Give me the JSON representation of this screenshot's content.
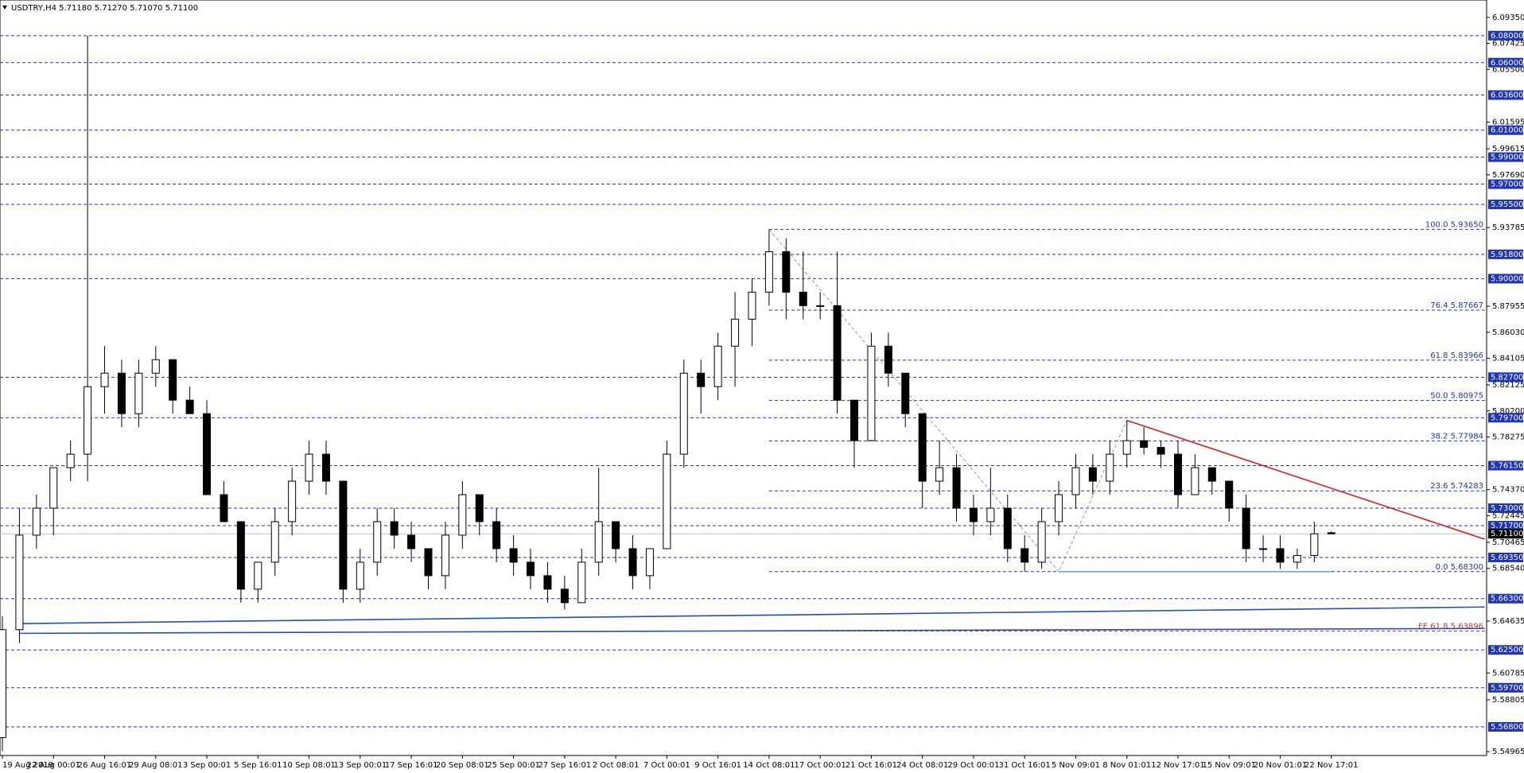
{
  "chart_data": {
    "type": "candlestick",
    "title": "USDTRY,H4  5.71180 5.71270 5.71070 5.71100",
    "categories": [
      "19 Aug 2019",
      "22 Aug 00:01",
      "26 Aug 16:01",
      "29 Aug 08:01",
      "3 Sep 00:01",
      "5 Sep 16:01",
      "10 Sep 08:01",
      "13 Sep 00:01",
      "17 Sep 16:01",
      "20 Sep 08:01",
      "25 Sep 00:01",
      "27 Sep 16:01",
      "2 Oct 08:01",
      "7 Oct 00:01",
      "9 Oct 16:01",
      "14 Oct 08:01",
      "17 Oct 00:01",
      "21 Oct 16:01",
      "24 Oct 08:01",
      "29 Oct 00:01",
      "31 Oct 16:01",
      "5 Nov 09:01",
      "8 Nov 01:01",
      "12 Nov 17:01",
      "15 Nov 09:01",
      "20 Nov 01:01",
      "22 Nov 17:01"
    ],
    "candles": {
      "open": [
        5.56,
        5.64,
        5.71,
        5.73,
        5.76,
        5.77,
        5.82,
        5.83,
        5.8,
        5.83,
        5.84,
        5.81,
        5.8,
        5.74,
        5.72,
        5.67,
        5.69,
        5.72,
        5.75,
        5.77,
        5.75,
        5.67,
        5.69,
        5.72,
        5.71,
        5.7,
        5.68,
        5.71,
        5.74,
        5.72,
        5.7,
        5.69,
        5.68,
        5.67,
        5.66,
        5.69,
        5.72,
        5.7,
        5.68,
        5.7,
        5.77,
        5.83,
        5.82,
        5.85,
        5.87,
        5.89,
        5.92,
        5.89,
        5.88,
        5.88,
        5.81,
        5.78,
        5.85,
        5.83,
        5.8,
        5.75,
        5.76,
        5.73,
        5.72,
        5.73,
        5.7,
        5.69,
        5.72,
        5.74,
        5.76,
        5.75,
        5.77,
        5.78,
        5.775,
        5.77,
        5.74,
        5.76,
        5.75,
        5.73,
        5.7,
        5.7,
        5.69,
        5.695,
        5.7118
      ],
      "high": [
        5.65,
        5.73,
        5.74,
        5.76,
        5.78,
        6.08,
        5.85,
        5.84,
        5.84,
        5.85,
        5.84,
        5.82,
        5.81,
        5.75,
        5.72,
        5.69,
        5.73,
        5.76,
        5.78,
        5.78,
        5.75,
        5.7,
        5.73,
        5.73,
        5.72,
        5.7,
        5.72,
        5.75,
        5.74,
        5.73,
        5.71,
        5.7,
        5.69,
        5.68,
        5.7,
        5.76,
        5.72,
        5.71,
        5.7,
        5.78,
        5.84,
        5.84,
        5.86,
        5.89,
        5.9,
        5.9365,
        5.93,
        5.92,
        5.89,
        5.92,
        5.81,
        5.86,
        5.86,
        5.83,
        5.8,
        5.78,
        5.77,
        5.74,
        5.76,
        5.74,
        5.71,
        5.73,
        5.75,
        5.77,
        5.77,
        5.78,
        5.795,
        5.79,
        5.78,
        5.78,
        5.77,
        5.76,
        5.75,
        5.74,
        5.71,
        5.71,
        5.7,
        5.72,
        5.7127
      ],
      "low": [
        5.55,
        5.63,
        5.7,
        5.71,
        5.75,
        5.75,
        5.8,
        5.79,
        5.79,
        5.82,
        5.8,
        5.8,
        5.74,
        5.72,
        5.66,
        5.66,
        5.68,
        5.71,
        5.74,
        5.74,
        5.66,
        5.66,
        5.68,
        5.7,
        5.69,
        5.67,
        5.67,
        5.7,
        5.71,
        5.69,
        5.68,
        5.67,
        5.66,
        5.655,
        5.66,
        5.68,
        5.69,
        5.67,
        5.67,
        5.7,
        5.76,
        5.8,
        5.81,
        5.82,
        5.85,
        5.88,
        5.87,
        5.87,
        5.87,
        5.8,
        5.76,
        5.78,
        5.82,
        5.79,
        5.73,
        5.74,
        5.72,
        5.71,
        5.71,
        5.69,
        5.683,
        5.685,
        5.71,
        5.73,
        5.74,
        5.74,
        5.76,
        5.77,
        5.76,
        5.73,
        5.74,
        5.74,
        5.72,
        5.69,
        5.69,
        5.685,
        5.685,
        5.69,
        5.7107
      ],
      "close": [
        5.64,
        5.71,
        5.73,
        5.76,
        5.77,
        5.82,
        5.83,
        5.8,
        5.83,
        5.84,
        5.81,
        5.8,
        5.74,
        5.72,
        5.67,
        5.69,
        5.72,
        5.75,
        5.77,
        5.75,
        5.67,
        5.69,
        5.72,
        5.71,
        5.7,
        5.68,
        5.71,
        5.74,
        5.72,
        5.7,
        5.69,
        5.68,
        5.67,
        5.66,
        5.69,
        5.72,
        5.7,
        5.68,
        5.7,
        5.77,
        5.83,
        5.82,
        5.85,
        5.87,
        5.89,
        5.92,
        5.89,
        5.88,
        5.88,
        5.81,
        5.78,
        5.85,
        5.83,
        5.8,
        5.75,
        5.76,
        5.73,
        5.72,
        5.73,
        5.7,
        5.69,
        5.72,
        5.74,
        5.76,
        5.75,
        5.77,
        5.78,
        5.775,
        5.77,
        5.74,
        5.76,
        5.75,
        5.73,
        5.7,
        5.7,
        5.69,
        5.695,
        5.711,
        5.711
      ]
    },
    "ylim": [
      5.5468,
      6.1064
    ],
    "yticks": [
      {
        "value": 6.0935,
        "label": "6.09350"
      },
      {
        "value": 6.07425,
        "label": "6.07425"
      },
      {
        "value": 6.055,
        "label": "6.05500"
      },
      {
        "value": 6.01595,
        "label": "6.01595"
      },
      {
        "value": 5.99615,
        "label": "5.99615"
      },
      {
        "value": 5.9769,
        "label": "5.97690"
      },
      {
        "value": 5.93785,
        "label": "5.93785"
      },
      {
        "value": 5.87955,
        "label": "5.87955"
      },
      {
        "value": 5.8603,
        "label": "5.86030"
      },
      {
        "value": 5.84105,
        "label": "5.84105"
      },
      {
        "value": 5.82125,
        "label": "5.82125"
      },
      {
        "value": 5.802,
        "label": "5.80200"
      },
      {
        "value": 5.78275,
        "label": "5.78275"
      },
      {
        "value": 5.7437,
        "label": "5.74370"
      },
      {
        "value": 5.72445,
        "label": "5.72445"
      },
      {
        "value": 5.70465,
        "label": "5.70465"
      },
      {
        "value": 5.6854,
        "label": "5.68540"
      },
      {
        "value": 5.64635,
        "label": "5.64635"
      },
      {
        "value": 5.60785,
        "label": "5.60785"
      },
      {
        "value": 5.58805,
        "label": "5.58805"
      },
      {
        "value": 5.54965,
        "label": "5.54965"
      }
    ],
    "levels": [
      {
        "value": 6.08,
        "label": "6.08000"
      },
      {
        "value": 6.06,
        "label": "6.06000"
      },
      {
        "value": 6.036,
        "label": "6.03600"
      },
      {
        "value": 6.01,
        "label": "6.01000"
      },
      {
        "value": 5.99,
        "label": "5.99000"
      },
      {
        "value": 5.97,
        "label": "5.97000"
      },
      {
        "value": 5.955,
        "label": "5.95500"
      },
      {
        "value": 5.918,
        "label": "5.91800"
      },
      {
        "value": 5.9,
        "label": "5.90000"
      },
      {
        "value": 5.827,
        "label": "5.82700"
      },
      {
        "value": 5.797,
        "label": "5.79700"
      },
      {
        "value": 5.7615,
        "label": "5.76150"
      },
      {
        "value": 5.73,
        "label": "5.73000"
      },
      {
        "value": 5.717,
        "label": "5.71700"
      },
      {
        "value": 5.6935,
        "label": "5.69350"
      },
      {
        "value": 5.663,
        "label": "5.66300"
      },
      {
        "value": 5.625,
        "label": "5.62500"
      },
      {
        "value": 5.597,
        "label": "5.59700"
      },
      {
        "value": 5.568,
        "label": "5.56800"
      }
    ],
    "level_color": "#1f35b5",
    "current_price": {
      "value": 5.711,
      "label": "5.71100"
    },
    "fib_levels": [
      {
        "value": 5.9365,
        "label": "100.0 5.93650",
        "color": "#1f35b5"
      },
      {
        "value": 5.87667,
        "label": "76.4 5.87667",
        "color": "#1f35b5"
      },
      {
        "value": 5.83966,
        "label": "61.8 5.83966",
        "color": "#1f35b5"
      },
      {
        "value": 5.80975,
        "label": "50.0 5.80975",
        "color": "#1f35b5"
      },
      {
        "value": 5.77984,
        "label": "38.2 5.77984",
        "color": "#1f35b5"
      },
      {
        "value": 5.74283,
        "label": "23.6 5.74283",
        "color": "#1f35b5"
      },
      {
        "value": 5.683,
        "label": "0.0 5.68300",
        "color": "#1f35b5"
      },
      {
        "value": 5.63896,
        "label": "FE 61.8 5.63896",
        "color": "#c0392b"
      }
    ],
    "trendlines": [
      {
        "x": [
          1,
          87
        ],
        "y": [
          5.6445,
          5.6568
        ],
        "color": "#1f4fbf",
        "style": "solid"
      },
      {
        "x": [
          1,
          87
        ],
        "y": [
          5.6373,
          5.6409
        ],
        "color": "#1f4fbf",
        "style": "solid"
      },
      {
        "x": [
          66,
          87
        ],
        "y": [
          5.795,
          5.707
        ],
        "color": "#d61f1f",
        "style": "solid"
      },
      {
        "x": [
          62,
          78
        ],
        "y": [
          5.683,
          5.683
        ],
        "color": "#6fa8dc",
        "style": "solid"
      },
      {
        "x": [
          45,
          62,
          66
        ],
        "y": [
          5.9365,
          5.683,
          5.795
        ],
        "color": "#9a9a9a",
        "style": "dashed"
      }
    ]
  }
}
